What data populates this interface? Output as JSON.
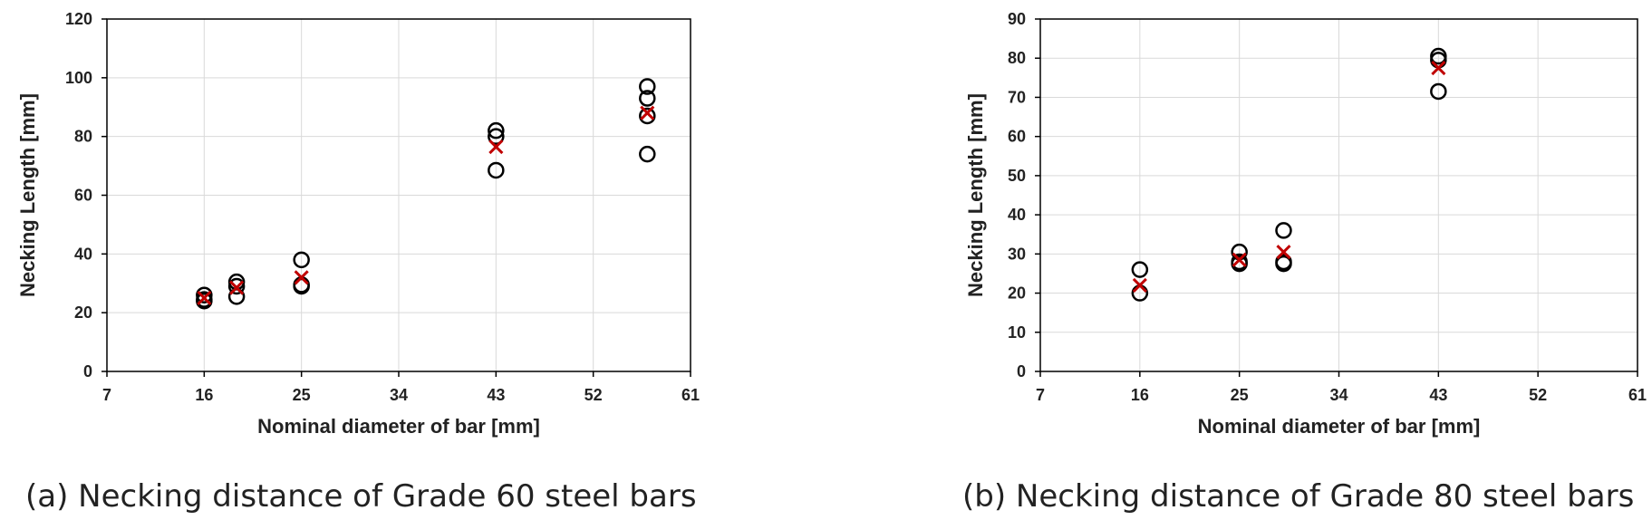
{
  "chart_data": [
    {
      "type": "scatter",
      "xlabel": "Nominal diameter of bar [mm]",
      "ylabel": "Necking Length [mm]",
      "xlim": [
        7,
        61
      ],
      "xticks": [
        7,
        16,
        25,
        34,
        43,
        52,
        61
      ],
      "ylim": [
        0,
        120
      ],
      "yticks": [
        0,
        20,
        40,
        60,
        80,
        100,
        120
      ],
      "grid": true,
      "caption": "(a) Necking distance of Grade 60 steel bars",
      "series": [
        {
          "marker": "circle",
          "color": "#000000",
          "x": [
            16,
            16,
            16,
            19,
            19,
            19,
            25,
            25,
            25,
            43,
            43,
            43,
            57,
            57,
            57,
            57
          ],
          "y": [
            26,
            24.5,
            24,
            30.5,
            29,
            25.5,
            38,
            29.5,
            29,
            82,
            80,
            68.5,
            97,
            93,
            87,
            74
          ]
        },
        {
          "marker": "x",
          "color": "#c00000",
          "x": [
            16,
            19,
            25,
            43,
            57
          ],
          "y": [
            25,
            28.5,
            32,
            76.5,
            88
          ]
        }
      ]
    },
    {
      "type": "scatter",
      "xlabel": "Nominal diameter of bar [mm]",
      "ylabel": "Necking Length [mm]",
      "xlim": [
        7,
        61
      ],
      "xticks": [
        7,
        16,
        25,
        34,
        43,
        52,
        61
      ],
      "ylim": [
        0,
        90
      ],
      "yticks": [
        0,
        10,
        20,
        30,
        40,
        50,
        60,
        70,
        80,
        90
      ],
      "grid": true,
      "caption": "(b) Necking distance of Grade 80 steel bars",
      "series": [
        {
          "marker": "circle",
          "color": "#000000",
          "x": [
            16,
            16,
            25,
            25,
            25,
            29,
            29,
            29,
            43,
            43,
            43
          ],
          "y": [
            26,
            20,
            30.5,
            28,
            27.5,
            36,
            28,
            27.5,
            80.5,
            79.5,
            71.5
          ]
        },
        {
          "marker": "x",
          "color": "#c00000",
          "x": [
            16,
            25,
            29,
            43
          ],
          "y": [
            22,
            28.5,
            30.5,
            77.5
          ]
        }
      ]
    }
  ]
}
